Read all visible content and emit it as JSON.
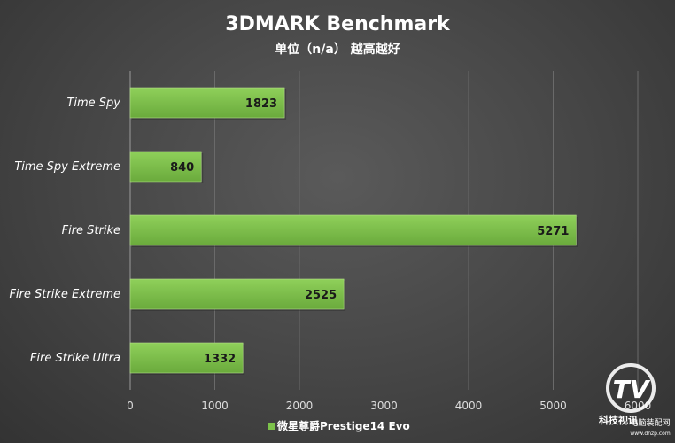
{
  "chart_data": {
    "type": "bar",
    "orientation": "horizontal",
    "title": "3DMARK Benchmark",
    "subtitle": "单位（n/a） 越高越好",
    "categories": [
      "Time Spy",
      "Time Spy Extreme",
      "Fire Strike",
      "Fire Strike Extreme",
      "Fire Strike Ultra"
    ],
    "series": [
      {
        "name": "微星尊爵Prestige14 Evo",
        "values": [
          1823,
          840,
          5271,
          2525,
          1332
        ]
      }
    ],
    "xlim": [
      0,
      6000
    ],
    "x_ticks": [
      0,
      1000,
      2000,
      3000,
      4000,
      5000,
      6000
    ],
    "grid": "vertical",
    "legend": "bottom",
    "bar_color": "#7cc24a"
  },
  "watermark": {
    "line1": "科技视讯",
    "line2": "电脑装配网",
    "line3": "www.dnzp.com"
  }
}
